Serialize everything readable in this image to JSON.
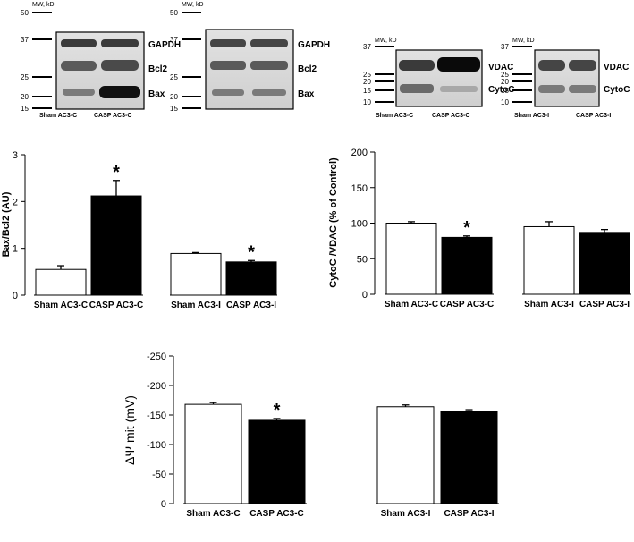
{
  "blots": [
    {
      "id": "blot-bcl2-c",
      "mw_title": "MW, kD",
      "mw_ticks": [
        "50",
        "37",
        "25",
        "20",
        "15"
      ],
      "bands": [
        "GAPDH",
        "Bcl2",
        "Bax"
      ],
      "lanes": [
        "Sham AC3-C",
        "CASP AC3-C"
      ]
    },
    {
      "id": "blot-bcl2-i",
      "mw_title": "MW, kD",
      "mw_ticks": [
        "50",
        "37",
        "25",
        "20",
        "15"
      ],
      "bands": [
        "GAPDH",
        "Bcl2",
        "Bax"
      ],
      "lanes": []
    },
    {
      "id": "blot-vdac-c",
      "mw_title": "MW, kD",
      "mw_ticks": [
        "37",
        "25",
        "20",
        "15",
        "10"
      ],
      "bands": [
        "VDAC",
        "CytoC"
      ],
      "lanes": [
        "Sham AC3-C",
        "CASP AC3-C"
      ]
    },
    {
      "id": "blot-vdac-i",
      "mw_title": "MW, kD",
      "mw_ticks": [
        "37",
        "25",
        "20",
        "15",
        "10"
      ],
      "bands": [
        "VDAC",
        "CytoC"
      ],
      "lanes": [
        "Sham AC3-I",
        "CASP AC3-I"
      ]
    }
  ],
  "chart_data": [
    {
      "type": "bar",
      "ylabel": "Bax/Bcl2 (AU)",
      "ylim": [
        0,
        3
      ],
      "yticks": [
        "0",
        "1",
        "2",
        "3"
      ],
      "grid": false,
      "groups": [
        {
          "categories": [
            "Sham AC3-C",
            "CASP AC3-C"
          ],
          "values": [
            0.55,
            2.12
          ],
          "errors": [
            0.08,
            0.33
          ],
          "fills": [
            "#ffffff",
            "#000000"
          ],
          "significant": [
            "",
            "*"
          ]
        },
        {
          "categories": [
            "Sham AC3-I",
            "CASP AC3-I"
          ],
          "values": [
            0.89,
            0.71
          ],
          "errors": [
            0.02,
            0.03
          ],
          "fills": [
            "#ffffff",
            "#000000"
          ],
          "significant": [
            "",
            "*"
          ]
        }
      ]
    },
    {
      "type": "bar",
      "ylabel": "CytoC /VDAC (% of Control)",
      "ylim": [
        0,
        200
      ],
      "yticks": [
        "0",
        "50",
        "100",
        "150",
        "200"
      ],
      "grid": false,
      "groups": [
        {
          "categories": [
            "Sham AC3-C",
            "CASP AC3-C"
          ],
          "values": [
            100,
            80
          ],
          "errors": [
            2,
            2
          ],
          "fills": [
            "#ffffff",
            "#000000"
          ],
          "significant": [
            "",
            "*"
          ]
        },
        {
          "categories": [
            "Sham AC3-I",
            "CASP AC3-I"
          ],
          "values": [
            95,
            87
          ],
          "errors": [
            7,
            4
          ],
          "fills": [
            "#ffffff",
            "#000000"
          ],
          "significant": [
            "",
            ""
          ]
        }
      ]
    },
    {
      "type": "bar",
      "ylabel": "ΔΨ mit (mV)",
      "ylim": [
        0,
        -250
      ],
      "yticks": [
        "0",
        "-50",
        "-100",
        "-150",
        "-200",
        "-250"
      ],
      "grid": false,
      "groups": [
        {
          "categories": [
            "Sham AC3-C",
            "CASP AC3-C"
          ],
          "values": [
            -168,
            -141
          ],
          "errors": [
            3,
            3
          ],
          "fills": [
            "#ffffff",
            "#000000"
          ],
          "significant": [
            "",
            "*"
          ]
        },
        {
          "categories": [
            "Sham AC3-I",
            "CASP AC3-I"
          ],
          "values": [
            -164,
            -156
          ],
          "errors": [
            3,
            3
          ],
          "fills": [
            "#ffffff",
            "#000000"
          ],
          "significant": [
            "",
            ""
          ]
        }
      ]
    }
  ]
}
